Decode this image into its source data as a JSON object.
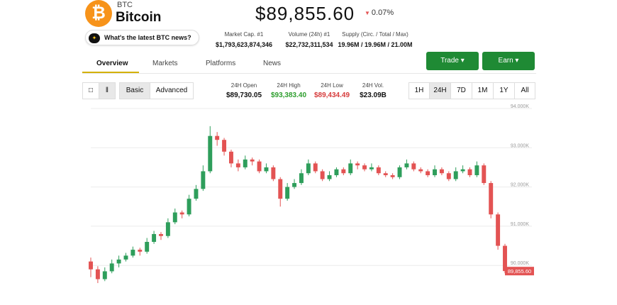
{
  "header": {
    "symbol": "BTC",
    "name": "Bitcoin",
    "price": "$89,855.60",
    "change": "0.07%",
    "news": "What's the latest BTC news?"
  },
  "market_stats": [
    {
      "label": "Market Cap. #1",
      "value": "$1,793,623,874,346"
    },
    {
      "label": "Volume (24h) #1",
      "value": "$22,732,311,534"
    },
    {
      "label": "Supply (Circ. / Total / Max)",
      "value": "19.96M / 19.96M / 21.00M"
    }
  ],
  "tabs": [
    "Overview",
    "Markets",
    "Platforms",
    "News"
  ],
  "actions": [
    "Trade",
    "Earn"
  ],
  "chart_modes": [
    "Basic",
    "Advanced"
  ],
  "day_stats": [
    {
      "label": "24H Open",
      "value": "$89,730.05"
    },
    {
      "label": "24H High",
      "value": "$93,383.40"
    },
    {
      "label": "24H Low",
      "value": "$89,434.49"
    },
    {
      "label": "24H Vol.",
      "value": "$23.09B"
    }
  ],
  "ranges": [
    "1H",
    "24H",
    "7D",
    "1M",
    "1Y",
    "All"
  ],
  "chart_data": {
    "type": "candlestick",
    "up_color": "#2e9e5b",
    "down_color": "#e35353",
    "grid": true,
    "ylim": [
      89000,
      94050
    ],
    "yticks": [
      {
        "value": 90000,
        "label": "90.000K"
      },
      {
        "value": 91000,
        "label": "91.000K"
      },
      {
        "value": 92000,
        "label": "92.000K"
      },
      {
        "value": 93000,
        "label": "93.000K"
      },
      {
        "value": 94000,
        "label": "94.000K"
      }
    ],
    "last_price": {
      "value": 89855.6,
      "label": "89,855.60"
    },
    "open": [
      90100,
      89900,
      89650,
      89850,
      90050,
      90150,
      90250,
      90400,
      90350,
      90600,
      90800,
      90750,
      91100,
      91350,
      91300,
      91700,
      91950,
      92400,
      93300,
      93200,
      92900,
      92600,
      92500,
      92700,
      92650,
      92400,
      92500,
      92200,
      91700,
      92000,
      92100,
      92350,
      92600,
      92400,
      92200,
      92300,
      92450,
      92350,
      92600,
      92550,
      92450,
      92500,
      92350,
      92300,
      92250,
      92500,
      92600,
      92450,
      92400,
      92300,
      92450,
      92350,
      92200,
      92400,
      92450,
      92300,
      92550,
      92100,
      91300,
      90500
    ],
    "high": [
      90200,
      89980,
      89950,
      90150,
      90250,
      90320,
      90480,
      90450,
      90700,
      90880,
      90850,
      91200,
      91450,
      91400,
      91800,
      92050,
      92550,
      93550,
      93400,
      93250,
      92950,
      92700,
      92800,
      92750,
      92700,
      92600,
      92550,
      92250,
      92100,
      92200,
      92450,
      92700,
      92650,
      92450,
      92400,
      92500,
      92500,
      92700,
      92650,
      92600,
      92600,
      92550,
      92400,
      92350,
      92550,
      92700,
      92650,
      92500,
      92450,
      92550,
      92500,
      92400,
      92500,
      92550,
      92500,
      92650,
      92600,
      92150,
      91350,
      90550
    ],
    "low": [
      89700,
      89550,
      89600,
      89800,
      89950,
      90100,
      90200,
      90250,
      90300,
      90550,
      90650,
      90700,
      91050,
      91200,
      91250,
      91650,
      91900,
      92350,
      93050,
      92800,
      92500,
      92400,
      92450,
      92550,
      92350,
      92350,
      92150,
      91500,
      91650,
      91950,
      92050,
      92300,
      92350,
      92150,
      92150,
      92250,
      92300,
      92300,
      92450,
      92400,
      92400,
      92300,
      92250,
      92200,
      92200,
      92450,
      92400,
      92350,
      92250,
      92250,
      92300,
      92150,
      92150,
      92350,
      92250,
      92250,
      92050,
      91200,
      90400,
      89800
    ],
    "close": [
      89900,
      89650,
      89850,
      90050,
      90150,
      90250,
      90400,
      90350,
      90600,
      90800,
      90750,
      91100,
      91350,
      91300,
      91700,
      91950,
      92400,
      93300,
      93200,
      92900,
      92600,
      92500,
      92700,
      92650,
      92400,
      92500,
      92200,
      91700,
      92000,
      92100,
      92350,
      92600,
      92400,
      92200,
      92300,
      92450,
      92350,
      92600,
      92550,
      92450,
      92500,
      92350,
      92300,
      92250,
      92500,
      92600,
      92450,
      92400,
      92300,
      92450,
      92350,
      92200,
      92400,
      92450,
      92300,
      92550,
      92100,
      91300,
      90500,
      89855.6
    ]
  }
}
